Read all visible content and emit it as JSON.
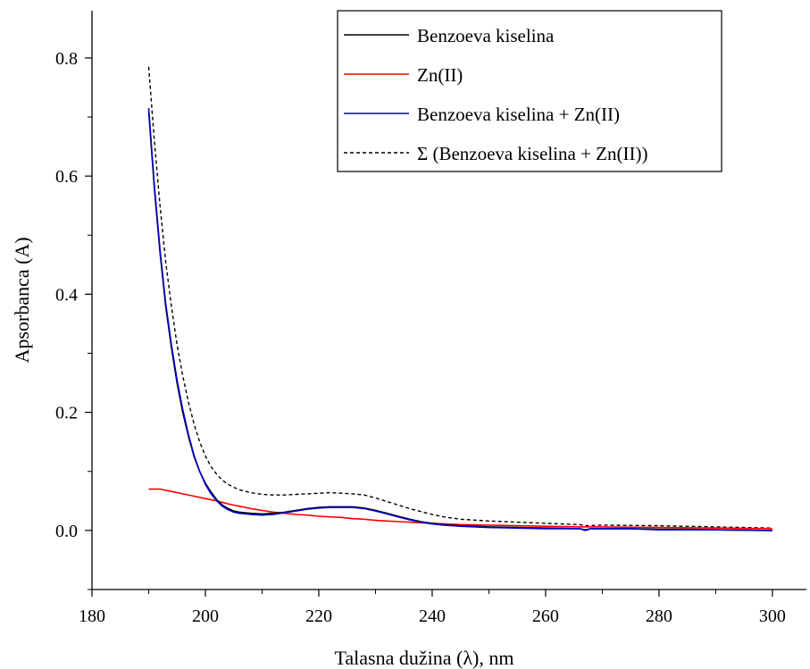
{
  "chart_data": {
    "type": "line",
    "title": "",
    "xlabel": "Talasna dužina (λ), nm",
    "ylabel": "Apsorbanca (A)",
    "xlim": [
      180,
      306
    ],
    "ylim": [
      -0.1,
      0.88
    ],
    "x_ticks": [
      180,
      200,
      220,
      240,
      260,
      280,
      300
    ],
    "x_tick_labels": [
      "180",
      "200",
      "220",
      "240",
      "260",
      "280",
      "300"
    ],
    "y_ticks": [
      0.0,
      0.2,
      0.4,
      0.6,
      0.8
    ],
    "y_tick_labels": [
      "0.0",
      "0.2",
      "0.4",
      "0.6",
      "0.8"
    ],
    "grid": false,
    "legend_position": "top-right",
    "series": [
      {
        "name": "Benzoeva kiselina",
        "color": "#000000",
        "dash": "solid",
        "points": [
          [
            190,
            0.71
          ],
          [
            191,
            0.58
          ],
          [
            192,
            0.47
          ],
          [
            193,
            0.38
          ],
          [
            194,
            0.31
          ],
          [
            195,
            0.25
          ],
          [
            196,
            0.2
          ],
          [
            197,
            0.16
          ],
          [
            198,
            0.125
          ],
          [
            199,
            0.1
          ],
          [
            200,
            0.08
          ],
          [
            201,
            0.065
          ],
          [
            202,
            0.052
          ],
          [
            203,
            0.043
          ],
          [
            204,
            0.037
          ],
          [
            205,
            0.033
          ],
          [
            206,
            0.031
          ],
          [
            208,
            0.029
          ],
          [
            210,
            0.028
          ],
          [
            212,
            0.029
          ],
          [
            214,
            0.031
          ],
          [
            216,
            0.034
          ],
          [
            218,
            0.037
          ],
          [
            220,
            0.039
          ],
          [
            222,
            0.04
          ],
          [
            224,
            0.04
          ],
          [
            226,
            0.04
          ],
          [
            228,
            0.038
          ],
          [
            230,
            0.034
          ],
          [
            232,
            0.029
          ],
          [
            234,
            0.024
          ],
          [
            236,
            0.019
          ],
          [
            238,
            0.015
          ],
          [
            240,
            0.012
          ],
          [
            242,
            0.01
          ],
          [
            245,
            0.008
          ],
          [
            250,
            0.006
          ],
          [
            255,
            0.005
          ],
          [
            260,
            0.004
          ],
          [
            266,
            0.003
          ],
          [
            267,
            0.001
          ],
          [
            268,
            0.003
          ],
          [
            275,
            0.003
          ],
          [
            280,
            0.002
          ],
          [
            285,
            0.002
          ],
          [
            290,
            0.001
          ],
          [
            300,
            0.0
          ]
        ]
      },
      {
        "name": "Zn(II)",
        "color": "#ff0000",
        "dash": "solid",
        "points": [
          [
            190,
            0.07
          ],
          [
            192,
            0.07
          ],
          [
            194,
            0.066
          ],
          [
            196,
            0.062
          ],
          [
            198,
            0.058
          ],
          [
            200,
            0.054
          ],
          [
            202,
            0.05
          ],
          [
            204,
            0.045
          ],
          [
            206,
            0.041
          ],
          [
            208,
            0.037
          ],
          [
            210,
            0.034
          ],
          [
            212,
            0.031
          ],
          [
            214,
            0.029
          ],
          [
            216,
            0.027
          ],
          [
            218,
            0.026
          ],
          [
            220,
            0.024
          ],
          [
            222,
            0.023
          ],
          [
            224,
            0.022
          ],
          [
            226,
            0.02
          ],
          [
            228,
            0.019
          ],
          [
            230,
            0.017
          ],
          [
            232,
            0.016
          ],
          [
            234,
            0.015
          ],
          [
            236,
            0.014
          ],
          [
            238,
            0.013
          ],
          [
            240,
            0.012
          ],
          [
            245,
            0.01
          ],
          [
            250,
            0.009
          ],
          [
            255,
            0.008
          ],
          [
            260,
            0.007
          ],
          [
            266,
            0.006
          ],
          [
            270,
            0.006
          ],
          [
            280,
            0.005
          ],
          [
            290,
            0.004
          ],
          [
            300,
            0.003
          ]
        ]
      },
      {
        "name": "Benzoeva kiselina + Zn(II)",
        "color": "#0000cc",
        "dash": "solid",
        "points": [
          [
            190,
            0.715
          ],
          [
            191,
            0.585
          ],
          [
            192,
            0.475
          ],
          [
            193,
            0.385
          ],
          [
            194,
            0.315
          ],
          [
            195,
            0.255
          ],
          [
            196,
            0.205
          ],
          [
            197,
            0.163
          ],
          [
            198,
            0.127
          ],
          [
            199,
            0.1
          ],
          [
            200,
            0.078
          ],
          [
            201,
            0.062
          ],
          [
            202,
            0.05
          ],
          [
            203,
            0.041
          ],
          [
            204,
            0.035
          ],
          [
            205,
            0.031
          ],
          [
            206,
            0.029
          ],
          [
            208,
            0.027
          ],
          [
            210,
            0.026
          ],
          [
            212,
            0.027
          ],
          [
            214,
            0.03
          ],
          [
            216,
            0.033
          ],
          [
            218,
            0.036
          ],
          [
            220,
            0.038
          ],
          [
            222,
            0.039
          ],
          [
            224,
            0.039
          ],
          [
            226,
            0.039
          ],
          [
            228,
            0.037
          ],
          [
            230,
            0.033
          ],
          [
            232,
            0.028
          ],
          [
            234,
            0.023
          ],
          [
            236,
            0.018
          ],
          [
            238,
            0.014
          ],
          [
            240,
            0.011
          ],
          [
            242,
            0.009
          ],
          [
            245,
            0.007
          ],
          [
            250,
            0.005
          ],
          [
            255,
            0.004
          ],
          [
            260,
            0.003
          ],
          [
            266,
            0.003
          ],
          [
            267,
            0.0
          ],
          [
            268,
            0.003
          ],
          [
            275,
            0.003
          ],
          [
            280,
            0.001
          ],
          [
            285,
            0.001
          ],
          [
            290,
            0.001
          ],
          [
            300,
            0.0
          ]
        ]
      },
      {
        "name": "Σ (Benzoeva kiselina + Zn(II))",
        "color": "#000000",
        "dash": "dashed",
        "points": [
          [
            190,
            0.785
          ],
          [
            191,
            0.66
          ],
          [
            192,
            0.55
          ],
          [
            193,
            0.455
          ],
          [
            194,
            0.38
          ],
          [
            195,
            0.315
          ],
          [
            196,
            0.262
          ],
          [
            197,
            0.218
          ],
          [
            198,
            0.18
          ],
          [
            199,
            0.15
          ],
          [
            200,
            0.126
          ],
          [
            201,
            0.108
          ],
          [
            202,
            0.095
          ],
          [
            203,
            0.085
          ],
          [
            204,
            0.078
          ],
          [
            205,
            0.073
          ],
          [
            206,
            0.069
          ],
          [
            208,
            0.064
          ],
          [
            210,
            0.061
          ],
          [
            212,
            0.06
          ],
          [
            214,
            0.06
          ],
          [
            216,
            0.061
          ],
          [
            218,
            0.062
          ],
          [
            220,
            0.063
          ],
          [
            222,
            0.064
          ],
          [
            224,
            0.063
          ],
          [
            226,
            0.062
          ],
          [
            228,
            0.06
          ],
          [
            230,
            0.055
          ],
          [
            232,
            0.049
          ],
          [
            234,
            0.043
          ],
          [
            236,
            0.037
          ],
          [
            238,
            0.032
          ],
          [
            240,
            0.027
          ],
          [
            242,
            0.023
          ],
          [
            245,
            0.019
          ],
          [
            250,
            0.016
          ],
          [
            255,
            0.014
          ],
          [
            260,
            0.012
          ],
          [
            266,
            0.01
          ],
          [
            267,
            0.008
          ],
          [
            270,
            0.009
          ],
          [
            280,
            0.008
          ],
          [
            290,
            0.006
          ],
          [
            300,
            0.004
          ]
        ]
      }
    ]
  }
}
